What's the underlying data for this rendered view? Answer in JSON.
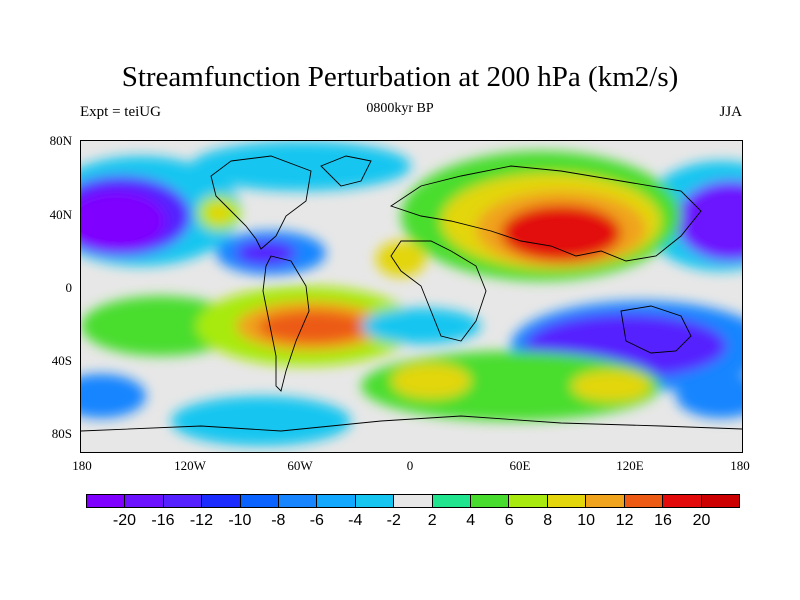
{
  "title": "Streamfunction Perturbation at 200 hPa (km2/s)",
  "subtitle_left": "Expt = teiUG",
  "subtitle_center": "0800kyr BP",
  "subtitle_right": "JJA",
  "lat_ticks": [
    "80N",
    "40N",
    "0",
    "40S",
    "80S"
  ],
  "lon_ticks": [
    "180",
    "120W",
    "60W",
    "0",
    "60E",
    "120E",
    "180"
  ],
  "colorbar": {
    "labels": [
      "-20",
      "-16",
      "-12",
      "-10",
      "-8",
      "-6",
      "-4",
      "-2",
      "2",
      "4",
      "6",
      "8",
      "10",
      "12",
      "16",
      "20"
    ],
    "colors": [
      "#7f00ff",
      "#6c12ff",
      "#5522ff",
      "#1c2cff",
      "#0a62ff",
      "#1685ff",
      "#12a8ff",
      "#16c6f0",
      "#e7e7e7",
      "#20e58e",
      "#48dd2e",
      "#a8ea10",
      "#e3d60c",
      "#f0a31c",
      "#ec5a14",
      "#e20a0a",
      "#cc0000"
    ]
  }
}
